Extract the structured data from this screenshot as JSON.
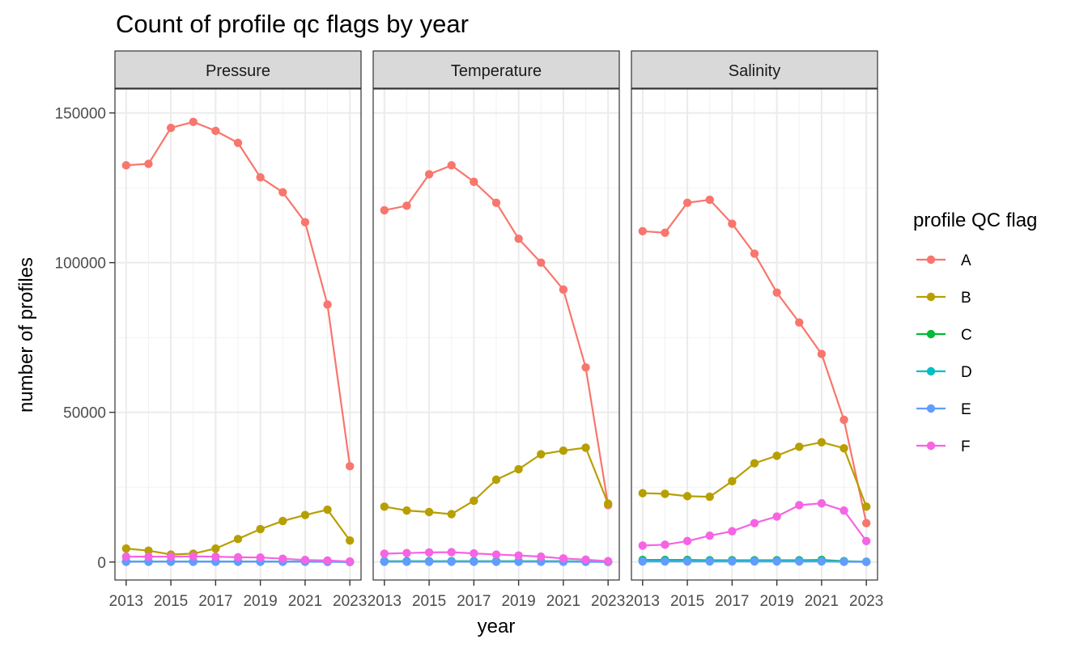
{
  "chart_data": {
    "type": "line",
    "title": "Count of profile qc flags by year",
    "xlabel": "year",
    "ylabel": "number of profiles",
    "x": [
      2013,
      2014,
      2015,
      2016,
      2017,
      2018,
      2019,
      2020,
      2021,
      2022,
      2023
    ],
    "x_tick_labels": [
      "2013",
      "2015",
      "2017",
      "2019",
      "2021",
      "2023"
    ],
    "y_tick_labels": [
      "0",
      "50000",
      "100000",
      "150000"
    ],
    "ylim": [
      -6000,
      158000
    ],
    "xlim": [
      2012.5,
      2023.5
    ],
    "grid": true,
    "legend": {
      "title": "profile QC flag",
      "position": "right",
      "entries": [
        "A",
        "B",
        "C",
        "D",
        "E",
        "F"
      ]
    },
    "colors": {
      "A": "#F8766D",
      "B": "#B79F00",
      "C": "#00BA38",
      "D": "#00BFC4",
      "E": "#619CFF",
      "F": "#F564E3"
    },
    "panels": [
      {
        "strip": "Pressure",
        "series": [
          {
            "name": "A",
            "values": [
              132500,
              133000,
              145000,
              147000,
              144000,
              140000,
              128500,
              123500,
              113500,
              86000,
              32000
            ]
          },
          {
            "name": "B",
            "values": [
              4500,
              3800,
              2500,
              2800,
              4500,
              7700,
              11000,
              13700,
              15700,
              17500,
              7200
            ]
          },
          {
            "name": "C",
            "values": [
              200,
              200,
              200,
              200,
              200,
              200,
              200,
              200,
              200,
              150,
              50
            ]
          },
          {
            "name": "D",
            "values": [
              150,
              150,
              150,
              150,
              150,
              150,
              150,
              150,
              150,
              100,
              50
            ]
          },
          {
            "name": "E",
            "values": [
              100,
              100,
              100,
              100,
              100,
              100,
              100,
              100,
              100,
              80,
              30
            ]
          },
          {
            "name": "F",
            "values": [
              1800,
              1800,
              1800,
              1900,
              1800,
              1600,
              1500,
              1100,
              700,
              500,
              200
            ]
          }
        ]
      },
      {
        "strip": "Temperature",
        "series": [
          {
            "name": "A",
            "values": [
              117500,
              119000,
              129500,
              132500,
              127000,
              120000,
              108000,
              100000,
              91000,
              65000,
              19000
            ]
          },
          {
            "name": "B",
            "values": [
              18500,
              17200,
              16700,
              16000,
              20500,
              27500,
              31000,
              36000,
              37200,
              38200,
              19500
            ]
          },
          {
            "name": "C",
            "values": [
              300,
              300,
              300,
              300,
              300,
              300,
              300,
              300,
              300,
              200,
              100
            ]
          },
          {
            "name": "D",
            "values": [
              200,
              200,
              200,
              200,
              200,
              200,
              200,
              200,
              200,
              150,
              50
            ]
          },
          {
            "name": "E",
            "values": [
              100,
              100,
              100,
              100,
              100,
              100,
              100,
              100,
              100,
              80,
              30
            ]
          },
          {
            "name": "F",
            "values": [
              2800,
              3000,
              3200,
              3300,
              2900,
              2500,
              2200,
              1800,
              1200,
              800,
              300
            ]
          }
        ]
      },
      {
        "strip": "Salinity",
        "series": [
          {
            "name": "A",
            "values": [
              110500,
              110000,
              120000,
              121000,
              113000,
              103000,
              90000,
              80000,
              69500,
              47500,
              13000
            ]
          },
          {
            "name": "B",
            "values": [
              23000,
              22800,
              22000,
              21800,
              27000,
              33000,
              35500,
              38500,
              40000,
              38000,
              18500
            ]
          },
          {
            "name": "C",
            "values": [
              700,
              700,
              700,
              600,
              600,
              600,
              600,
              600,
              700,
              300,
              100
            ]
          },
          {
            "name": "D",
            "values": [
              400,
              400,
              400,
              400,
              400,
              400,
              400,
              400,
              400,
              200,
              80
            ]
          },
          {
            "name": "E",
            "values": [
              200,
              200,
              200,
              200,
              200,
              200,
              200,
              200,
              200,
              100,
              50
            ]
          },
          {
            "name": "F",
            "values": [
              5500,
              5800,
              7000,
              8800,
              10300,
              13000,
              15200,
              19000,
              19600,
              17200,
              7000
            ]
          }
        ]
      }
    ]
  }
}
